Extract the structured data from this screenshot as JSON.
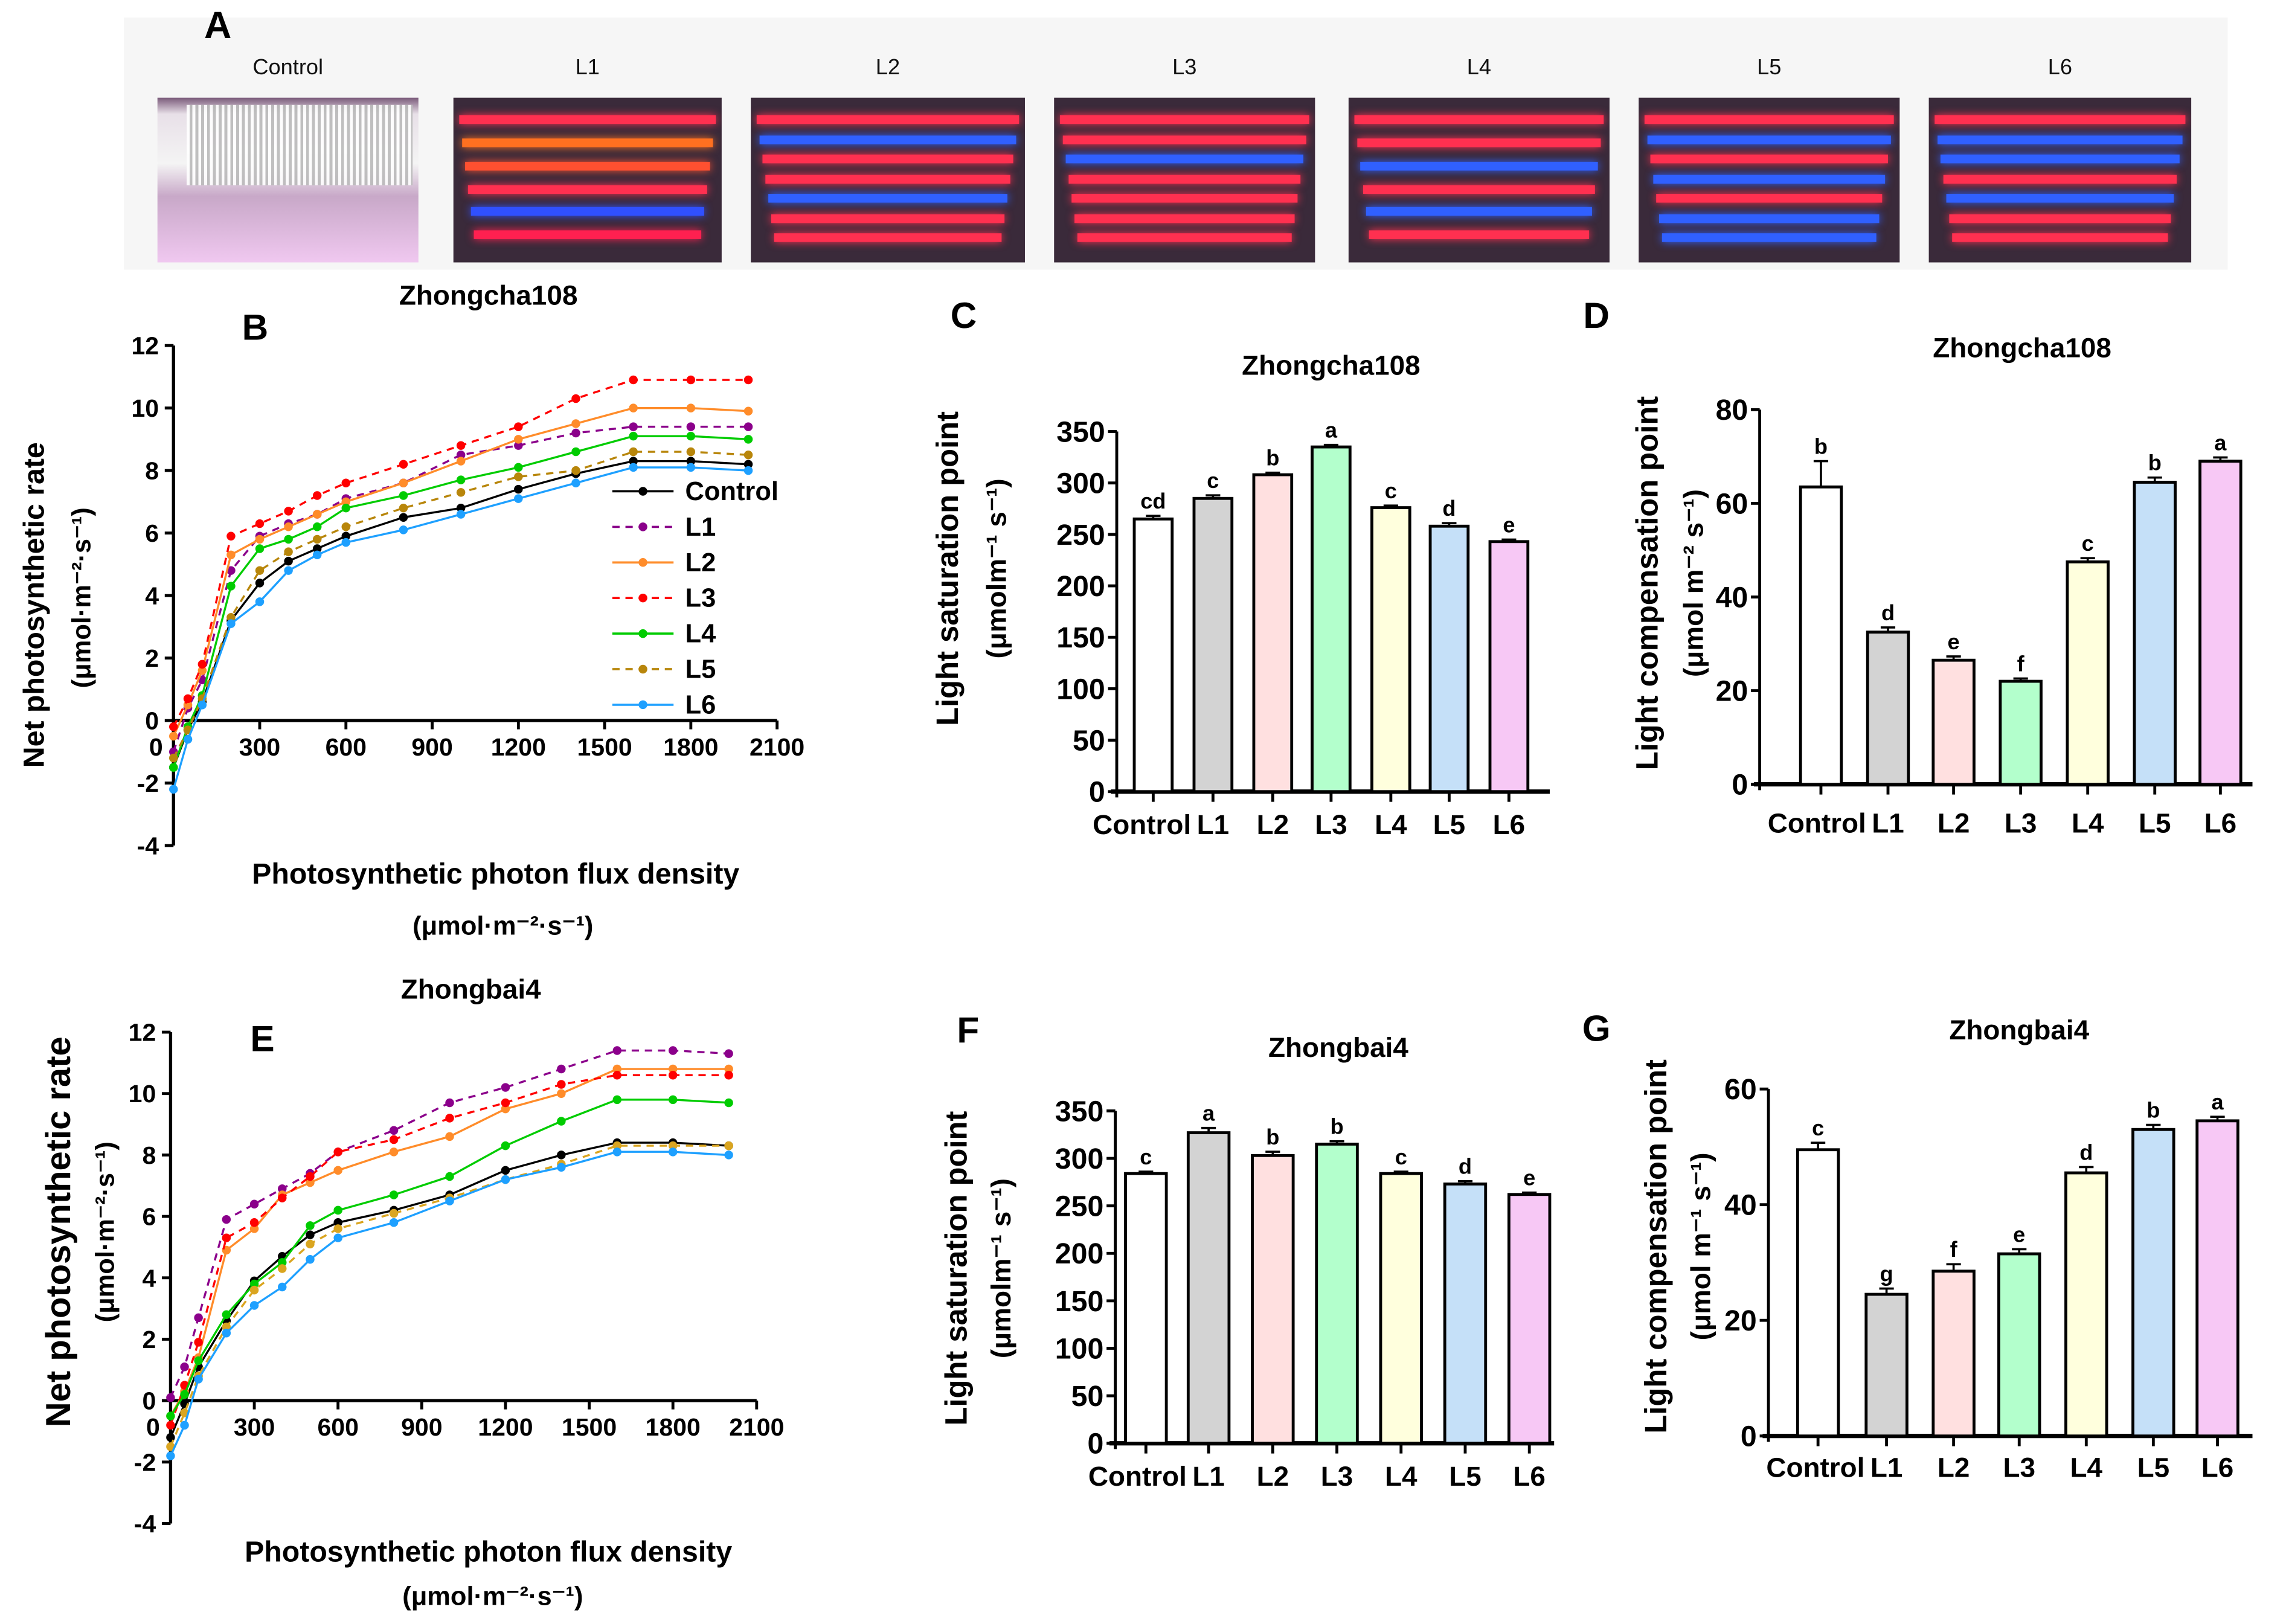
{
  "panel_a": {
    "letter": "A",
    "photos": [
      {
        "label": "Control"
      },
      {
        "label": "L1"
      },
      {
        "label": "L2"
      },
      {
        "label": "L3"
      },
      {
        "label": "L4"
      },
      {
        "label": "L5"
      },
      {
        "label": "L6"
      }
    ]
  },
  "chart_data": [
    {
      "panel": "B",
      "type": "line",
      "title": "Zhongcha108",
      "xlabel": "Photosynthetic photon flux density",
      "xlabel_unit": "(μmol·m⁻²·s⁻¹)",
      "ylabel": "Net photosynthetic rate",
      "ylabel_unit": "(μmol·m⁻²·s⁻¹)",
      "xlim": [
        0,
        2100
      ],
      "ylim": [
        -4,
        12
      ],
      "xticks": [
        "0",
        "300",
        "600",
        "900",
        "1200",
        "1500",
        "1800",
        "2100"
      ],
      "yticks": [
        "-4",
        "-2",
        "0",
        "2",
        "4",
        "6",
        "8",
        "10",
        "12"
      ],
      "legend": "right",
      "x": [
        0,
        50,
        100,
        200,
        300,
        400,
        500,
        600,
        800,
        1000,
        1200,
        1400,
        1600,
        1800,
        2000
      ],
      "series": [
        {
          "name": "Control",
          "color": "#000000",
          "dashed": false,
          "values": [
            -1.5,
            -0.3,
            0.6,
            3.2,
            4.4,
            5.1,
            5.5,
            5.9,
            6.5,
            6.8,
            7.4,
            7.9,
            8.3,
            8.3,
            8.2
          ]
        },
        {
          "name": "L1",
          "color": "#8b008b",
          "dashed": true,
          "values": [
            -1.0,
            0.4,
            1.3,
            4.8,
            5.9,
            6.3,
            6.6,
            7.1,
            7.6,
            8.5,
            8.8,
            9.2,
            9.4,
            9.4,
            9.4
          ]
        },
        {
          "name": "L2",
          "color": "#ff8c2a",
          "dashed": false,
          "values": [
            -0.5,
            0.5,
            1.6,
            5.3,
            5.8,
            6.2,
            6.6,
            7.0,
            7.6,
            8.3,
            9.0,
            9.5,
            10.0,
            10.0,
            9.9
          ]
        },
        {
          "name": "L3",
          "color": "#ff0000",
          "dashed": true,
          "values": [
            -0.2,
            0.7,
            1.8,
            5.9,
            6.3,
            6.7,
            7.2,
            7.6,
            8.2,
            8.8,
            9.4,
            10.3,
            10.9,
            10.9,
            10.9
          ]
        },
        {
          "name": "L4",
          "color": "#00cc00",
          "dashed": false,
          "values": [
            -1.5,
            -0.2,
            0.8,
            4.3,
            5.5,
            5.8,
            6.2,
            6.8,
            7.2,
            7.7,
            8.1,
            8.6,
            9.1,
            9.1,
            9.0
          ]
        },
        {
          "name": "L5",
          "color": "#b8860b",
          "dashed": true,
          "values": [
            -1.2,
            -0.3,
            0.7,
            3.3,
            4.8,
            5.4,
            5.8,
            6.2,
            6.8,
            7.3,
            7.8,
            8.0,
            8.6,
            8.6,
            8.5
          ]
        },
        {
          "name": "L6",
          "color": "#1ea0ff",
          "dashed": false,
          "values": [
            -2.2,
            -0.6,
            0.5,
            3.1,
            3.8,
            4.8,
            5.3,
            5.7,
            6.1,
            6.6,
            7.1,
            7.6,
            8.1,
            8.1,
            8.0
          ]
        }
      ]
    },
    {
      "panel": "C",
      "type": "bar",
      "title": "Zhongcha108",
      "ylabel": "Light saturation point",
      "ylabel_unit": "(μmolm⁻¹ s⁻¹)",
      "ylim": [
        0,
        350
      ],
      "yticks": [
        "0",
        "50",
        "100",
        "150",
        "200",
        "250",
        "300",
        "350"
      ],
      "categories": [
        "Control",
        "L1",
        "L2",
        "L3",
        "L4",
        "L5",
        "L6"
      ],
      "values": [
        265,
        285,
        308,
        335,
        276,
        258,
        243
      ],
      "errors": [
        3,
        3,
        2,
        2,
        2,
        3,
        2
      ],
      "letters": [
        "cd",
        "c",
        "b",
        "a",
        "c",
        "d",
        "e"
      ],
      "colors": [
        "#ffffff",
        "#d3d3d3",
        "#ffe0e0",
        "#b3ffcc",
        "#ffffdd",
        "#c5e0f8",
        "#f7c8f5"
      ]
    },
    {
      "panel": "D",
      "type": "bar",
      "title": "Zhongcha108",
      "ylabel": "Light compensation point",
      "ylabel_unit": "(μmol m⁻² s⁻¹)",
      "ylim": [
        0,
        80
      ],
      "yticks": [
        "0",
        "20",
        "40",
        "60",
        "80"
      ],
      "categories": [
        "Control",
        "L1",
        "L2",
        "L3",
        "L4",
        "L5",
        "L6"
      ],
      "values": [
        63.5,
        32.5,
        26.5,
        22,
        47.5,
        64.5,
        69
      ],
      "errors": [
        5.5,
        1,
        0.8,
        0.6,
        0.8,
        1,
        0.8
      ],
      "letters": [
        "b",
        "d",
        "e",
        "f",
        "c",
        "b",
        "a"
      ],
      "colors": [
        "#ffffff",
        "#d3d3d3",
        "#ffe0e0",
        "#b3ffcc",
        "#ffffdd",
        "#c5e0f8",
        "#f7c8f5"
      ]
    },
    {
      "panel": "E",
      "type": "line",
      "title": "Zhongbai4",
      "xlabel": "Photosynthetic photon flux density",
      "xlabel_unit": "(μmol·m⁻²·s⁻¹)",
      "ylabel": "Net photosynthetic rate",
      "ylabel_unit": "(μmol·m⁻²·s⁻¹)",
      "xlim": [
        0,
        2100
      ],
      "ylim": [
        -4,
        12
      ],
      "xticks": [
        "0",
        "300",
        "600",
        "900",
        "1200",
        "1500",
        "1800",
        "2100"
      ],
      "yticks": [
        "-4",
        "-2",
        "0",
        "2",
        "4",
        "6",
        "8",
        "10",
        "12"
      ],
      "x": [
        0,
        50,
        100,
        200,
        300,
        400,
        500,
        600,
        800,
        1000,
        1200,
        1400,
        1600,
        1800,
        2000
      ],
      "series": [
        {
          "name": "Control",
          "color": "#000000",
          "dashed": false,
          "values": [
            -1.2,
            -0.1,
            1.1,
            2.6,
            3.9,
            4.7,
            5.4,
            5.8,
            6.2,
            6.7,
            7.5,
            8.0,
            8.4,
            8.4,
            8.3
          ]
        },
        {
          "name": "L1",
          "color": "#8b008b",
          "dashed": true,
          "values": [
            0.1,
            1.1,
            2.7,
            5.9,
            6.4,
            6.9,
            7.4,
            8.1,
            8.8,
            9.7,
            10.2,
            10.8,
            11.4,
            11.4,
            11.3
          ]
        },
        {
          "name": "L2",
          "color": "#ff8c2a",
          "dashed": false,
          "values": [
            -0.5,
            0.3,
            1.4,
            4.9,
            5.6,
            6.7,
            7.1,
            7.5,
            8.1,
            8.6,
            9.5,
            10.0,
            10.8,
            10.8,
            10.8
          ]
        },
        {
          "name": "L3",
          "color": "#ff0000",
          "dashed": true,
          "values": [
            -0.8,
            0.5,
            1.9,
            5.3,
            5.8,
            6.6,
            7.3,
            8.1,
            8.5,
            9.2,
            9.7,
            10.3,
            10.6,
            10.6,
            10.6
          ]
        },
        {
          "name": "L4",
          "color": "#00cc00",
          "dashed": false,
          "values": [
            -0.5,
            0.2,
            1.3,
            2.8,
            3.8,
            4.5,
            5.7,
            6.2,
            6.7,
            7.3,
            8.3,
            9.1,
            9.8,
            9.8,
            9.7
          ]
        },
        {
          "name": "L5",
          "color": "#daa520",
          "dashed": true,
          "values": [
            -1.5,
            -0.4,
            0.8,
            2.4,
            3.6,
            4.3,
            5.1,
            5.6,
            6.1,
            6.6,
            7.2,
            7.7,
            8.3,
            8.3,
            8.3
          ]
        },
        {
          "name": "L6",
          "color": "#1ea0ff",
          "dashed": false,
          "values": [
            -1.8,
            -0.8,
            0.7,
            2.2,
            3.1,
            3.7,
            4.6,
            5.3,
            5.8,
            6.5,
            7.2,
            7.6,
            8.1,
            8.1,
            8.0
          ]
        }
      ]
    },
    {
      "panel": "F",
      "type": "bar",
      "title": "Zhongbai4",
      "ylabel": "Light saturation point",
      "ylabel_unit": "(μmolm⁻¹ s⁻¹)",
      "ylim": [
        0,
        350
      ],
      "yticks": [
        "0",
        "50",
        "100",
        "150",
        "200",
        "250",
        "300",
        "350"
      ],
      "categories": [
        "Control",
        "L1",
        "L2",
        "L3",
        "L4",
        "L5",
        "L6"
      ],
      "values": [
        284,
        327,
        303,
        315,
        284,
        273,
        262
      ],
      "errors": [
        2,
        5,
        4,
        3,
        2,
        3,
        2
      ],
      "letters": [
        "c",
        "a",
        "b",
        "b",
        "c",
        "d",
        "e"
      ],
      "colors": [
        "#ffffff",
        "#d3d3d3",
        "#ffe0e0",
        "#b3ffcc",
        "#ffffdd",
        "#c5e0f8",
        "#f7c8f5"
      ]
    },
    {
      "panel": "G",
      "type": "bar",
      "title": "Zhongbai4",
      "ylabel": "Light compensation point",
      "ylabel_unit": "(μmol m⁻¹ s⁻¹)",
      "ylim": [
        0,
        60
      ],
      "yticks": [
        "0",
        "20",
        "40",
        "60"
      ],
      "categories": [
        "Control",
        "L1",
        "L2",
        "L3",
        "L4",
        "L5",
        "L6"
      ],
      "values": [
        49.5,
        24.5,
        28.5,
        31.5,
        45.5,
        53,
        54.5
      ],
      "errors": [
        1.2,
        1,
        1.2,
        0.8,
        1,
        0.8,
        0.7
      ],
      "letters": [
        "c",
        "g",
        "f",
        "e",
        "d",
        "b",
        "a"
      ],
      "colors": [
        "#ffffff",
        "#d3d3d3",
        "#ffe0e0",
        "#b3ffcc",
        "#ffffdd",
        "#c5e0f8",
        "#f7c8f5"
      ]
    }
  ]
}
